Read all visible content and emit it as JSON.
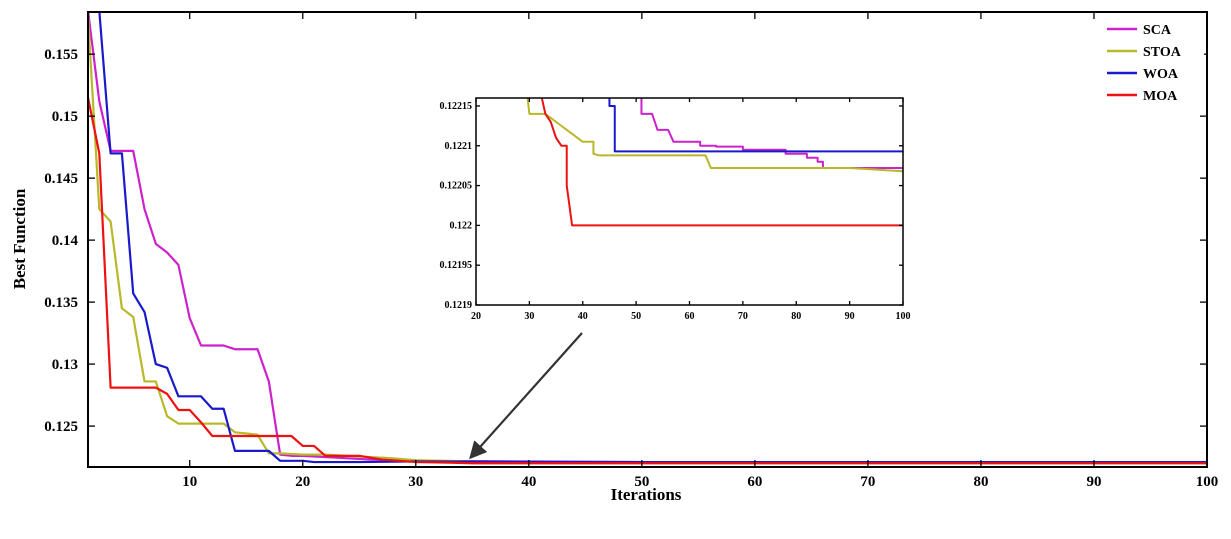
{
  "chart_data": [
    {
      "type": "line",
      "xlabel": "Iterations",
      "ylabel": "Best Function",
      "xlim": [
        1,
        100
      ],
      "ylim": [
        0.1217,
        0.1584
      ],
      "x_ticks": [
        10,
        20,
        30,
        40,
        50,
        60,
        70,
        80,
        90,
        100
      ],
      "y_ticks": [
        0.125,
        0.13,
        0.135,
        0.14,
        0.145,
        0.15,
        0.155
      ],
      "x_tick_labels": [
        "10",
        "20",
        "30",
        "40",
        "50",
        "60",
        "70",
        "80",
        "90",
        "100"
      ],
      "y_tick_labels": [
        "0.125",
        "0.13",
        "0.135",
        "0.14",
        "0.145",
        "0.15",
        "0.155"
      ],
      "legend_position": "top-right",
      "series": [
        {
          "name": "SCA",
          "color": "#cc22cc",
          "points": [
            [
              1,
              0.1585
            ],
            [
              2,
              0.1512
            ],
            [
              3,
              0.1472
            ],
            [
              4,
              0.1472
            ],
            [
              5,
              0.1472
            ],
            [
              6,
              0.1425
            ],
            [
              7,
              0.1397
            ],
            [
              8,
              0.139
            ],
            [
              9,
              0.138
            ],
            [
              10,
              0.1337
            ],
            [
              11,
              0.1315
            ],
            [
              12,
              0.1315
            ],
            [
              13,
              0.1315
            ],
            [
              14,
              0.1312
            ],
            [
              15,
              0.1312
            ],
            [
              16,
              0.1312
            ],
            [
              17,
              0.1286
            ],
            [
              18,
              0.1227
            ],
            [
              19,
              0.1226
            ],
            [
              20,
              0.1226
            ],
            [
              22,
              0.1225
            ],
            [
              24,
              0.1224
            ],
            [
              26,
              0.1223
            ],
            [
              30,
              0.1222
            ],
            [
              40,
              0.12215
            ],
            [
              50,
              0.1221
            ],
            [
              60,
              0.1221
            ],
            [
              70,
              0.1221
            ],
            [
              80,
              0.12208
            ],
            [
              90,
              0.12207
            ],
            [
              100,
              0.12207
            ]
          ]
        },
        {
          "name": "STOA",
          "color": "#b8b82a",
          "points": [
            [
              1,
              0.158
            ],
            [
              2,
              0.1425
            ],
            [
              3,
              0.1415
            ],
            [
              4,
              0.1345
            ],
            [
              5,
              0.1338
            ],
            [
              6,
              0.1286
            ],
            [
              7,
              0.1286
            ],
            [
              8,
              0.1258
            ],
            [
              9,
              0.1252
            ],
            [
              10,
              0.1252
            ],
            [
              11,
              0.1252
            ],
            [
              12,
              0.1252
            ],
            [
              13,
              0.1252
            ],
            [
              14,
              0.1245
            ],
            [
              15,
              0.1244
            ],
            [
              16,
              0.1243
            ],
            [
              17,
              0.1228
            ],
            [
              18,
              0.1228
            ],
            [
              20,
              0.1227
            ],
            [
              22,
              0.1227
            ],
            [
              24,
              0.1226
            ],
            [
              26,
              0.1225
            ],
            [
              28,
              0.1224
            ],
            [
              30,
              0.12225
            ],
            [
              35,
              0.12215
            ],
            [
              40,
              0.1221
            ],
            [
              50,
              0.12209
            ],
            [
              60,
              0.12208
            ],
            [
              70,
              0.12207
            ],
            [
              80,
              0.12207
            ],
            [
              90,
              0.12207
            ],
            [
              100,
              0.12207
            ]
          ]
        },
        {
          "name": "WOA",
          "color": "#1a1acc",
          "points": [
            [
              1,
              0.1585
            ],
            [
              2,
              0.1585
            ],
            [
              3,
              0.147
            ],
            [
              4,
              0.147
            ],
            [
              5,
              0.1357
            ],
            [
              6,
              0.1342
            ],
            [
              7,
              0.13
            ],
            [
              8,
              0.1297
            ],
            [
              9,
              0.1274
            ],
            [
              10,
              0.1274
            ],
            [
              11,
              0.1274
            ],
            [
              12,
              0.1264
            ],
            [
              13,
              0.1264
            ],
            [
              14,
              0.123
            ],
            [
              15,
              0.123
            ],
            [
              16,
              0.123
            ],
            [
              17,
              0.123
            ],
            [
              18,
              0.1222
            ],
            [
              20,
              0.1222
            ],
            [
              21,
              0.1221
            ],
            [
              25,
              0.1221
            ],
            [
              30,
              0.12215
            ],
            [
              40,
              0.12212
            ],
            [
              50,
              0.12209
            ],
            [
              60,
              0.12209
            ],
            [
              70,
              0.12209
            ],
            [
              80,
              0.12209
            ],
            [
              90,
              0.12209
            ],
            [
              100,
              0.12209
            ]
          ]
        },
        {
          "name": "MOA",
          "color": "#ee1111",
          "points": [
            [
              1,
              0.1515
            ],
            [
              2,
              0.147
            ],
            [
              3,
              0.1281
            ],
            [
              4,
              0.1281
            ],
            [
              5,
              0.1281
            ],
            [
              6,
              0.1281
            ],
            [
              7,
              0.1281
            ],
            [
              8,
              0.1276
            ],
            [
              9,
              0.1263
            ],
            [
              10,
              0.1263
            ],
            [
              11,
              0.1253
            ],
            [
              12,
              0.1242
            ],
            [
              13,
              0.1242
            ],
            [
              17,
              0.1242
            ],
            [
              19,
              0.1242
            ],
            [
              20,
              0.1234
            ],
            [
              21,
              0.1234
            ],
            [
              22,
              0.1226
            ],
            [
              25,
              0.1226
            ],
            [
              27,
              0.1223
            ],
            [
              30,
              0.1221
            ],
            [
              33,
              0.12205
            ],
            [
              35,
              0.122
            ],
            [
              37,
              0.122
            ],
            [
              40,
              0.122
            ],
            [
              50,
              0.122
            ],
            [
              60,
              0.122
            ],
            [
              70,
              0.122
            ],
            [
              80,
              0.122
            ],
            [
              90,
              0.122
            ],
            [
              100,
              0.122
            ]
          ]
        }
      ]
    },
    {
      "type": "line",
      "xlabel": "",
      "ylabel": "",
      "xlim": [
        20,
        100
      ],
      "ylim": [
        0.1219,
        0.12216
      ],
      "x_ticks": [
        20,
        30,
        40,
        50,
        60,
        70,
        80,
        90,
        100
      ],
      "y_ticks": [
        0.1219,
        0.12195,
        0.122,
        0.12205,
        0.1221,
        0.12215
      ],
      "x_tick_labels": [
        "20",
        "30",
        "40",
        "50",
        "60",
        "70",
        "80",
        "90",
        "100"
      ],
      "y_tick_labels": [
        "0.1219",
        "0.12195",
        "0.122",
        "0.12205",
        "0.1221",
        "0.12215"
      ],
      "series": [
        {
          "name": "SCA",
          "color": "#cc22cc",
          "points": [
            [
              51,
              0.1222
            ],
            [
              51,
              0.12214
            ],
            [
              53,
              0.12214
            ],
            [
              54,
              0.12212
            ],
            [
              56,
              0.12212
            ],
            [
              57,
              0.122105
            ],
            [
              62,
              0.122105
            ],
            [
              62,
              0.1221
            ],
            [
              65,
              0.1221
            ],
            [
              65,
              0.122099
            ],
            [
              70,
              0.122099
            ],
            [
              70,
              0.122095
            ],
            [
              78,
              0.122095
            ],
            [
              78,
              0.12209
            ],
            [
              82,
              0.12209
            ],
            [
              82,
              0.122085
            ],
            [
              84,
              0.122085
            ],
            [
              84,
              0.12208
            ],
            [
              85,
              0.12208
            ],
            [
              85,
              0.122072
            ],
            [
              100,
              0.122072
            ]
          ]
        },
        {
          "name": "STOA",
          "color": "#b8b82a",
          "points": [
            [
              29,
              0.1222
            ],
            [
              30,
              0.12214
            ],
            [
              33,
              0.12214
            ],
            [
              34,
              0.122135
            ],
            [
              35,
              0.12213
            ],
            [
              36,
              0.122125
            ],
            [
              37,
              0.12212
            ],
            [
              38,
              0.122115
            ],
            [
              39,
              0.12211
            ],
            [
              40,
              0.122105
            ],
            [
              42,
              0.122105
            ],
            [
              42,
              0.12209
            ],
            [
              43,
              0.122088
            ],
            [
              60,
              0.122088
            ],
            [
              63,
              0.122088
            ],
            [
              64,
              0.122072
            ],
            [
              90,
              0.122072
            ],
            [
              95,
              0.12207
            ],
            [
              100,
              0.122068
            ]
          ]
        },
        {
          "name": "WOA",
          "color": "#1a1acc",
          "points": [
            [
              45,
              0.1222
            ],
            [
              45,
              0.12215
            ],
            [
              46,
              0.12215
            ],
            [
              46,
              0.122093
            ],
            [
              100,
              0.122093
            ]
          ]
        },
        {
          "name": "MOA",
          "color": "#ee1111",
          "points": [
            [
              31,
              0.1222
            ],
            [
              33,
              0.12214
            ],
            [
              34,
              0.12213
            ],
            [
              35,
              0.12211
            ],
            [
              36,
              0.1221
            ],
            [
              37,
              0.1221
            ],
            [
              37,
              0.12205
            ],
            [
              38,
              0.122
            ],
            [
              100,
              0.122
            ]
          ]
        }
      ]
    }
  ]
}
